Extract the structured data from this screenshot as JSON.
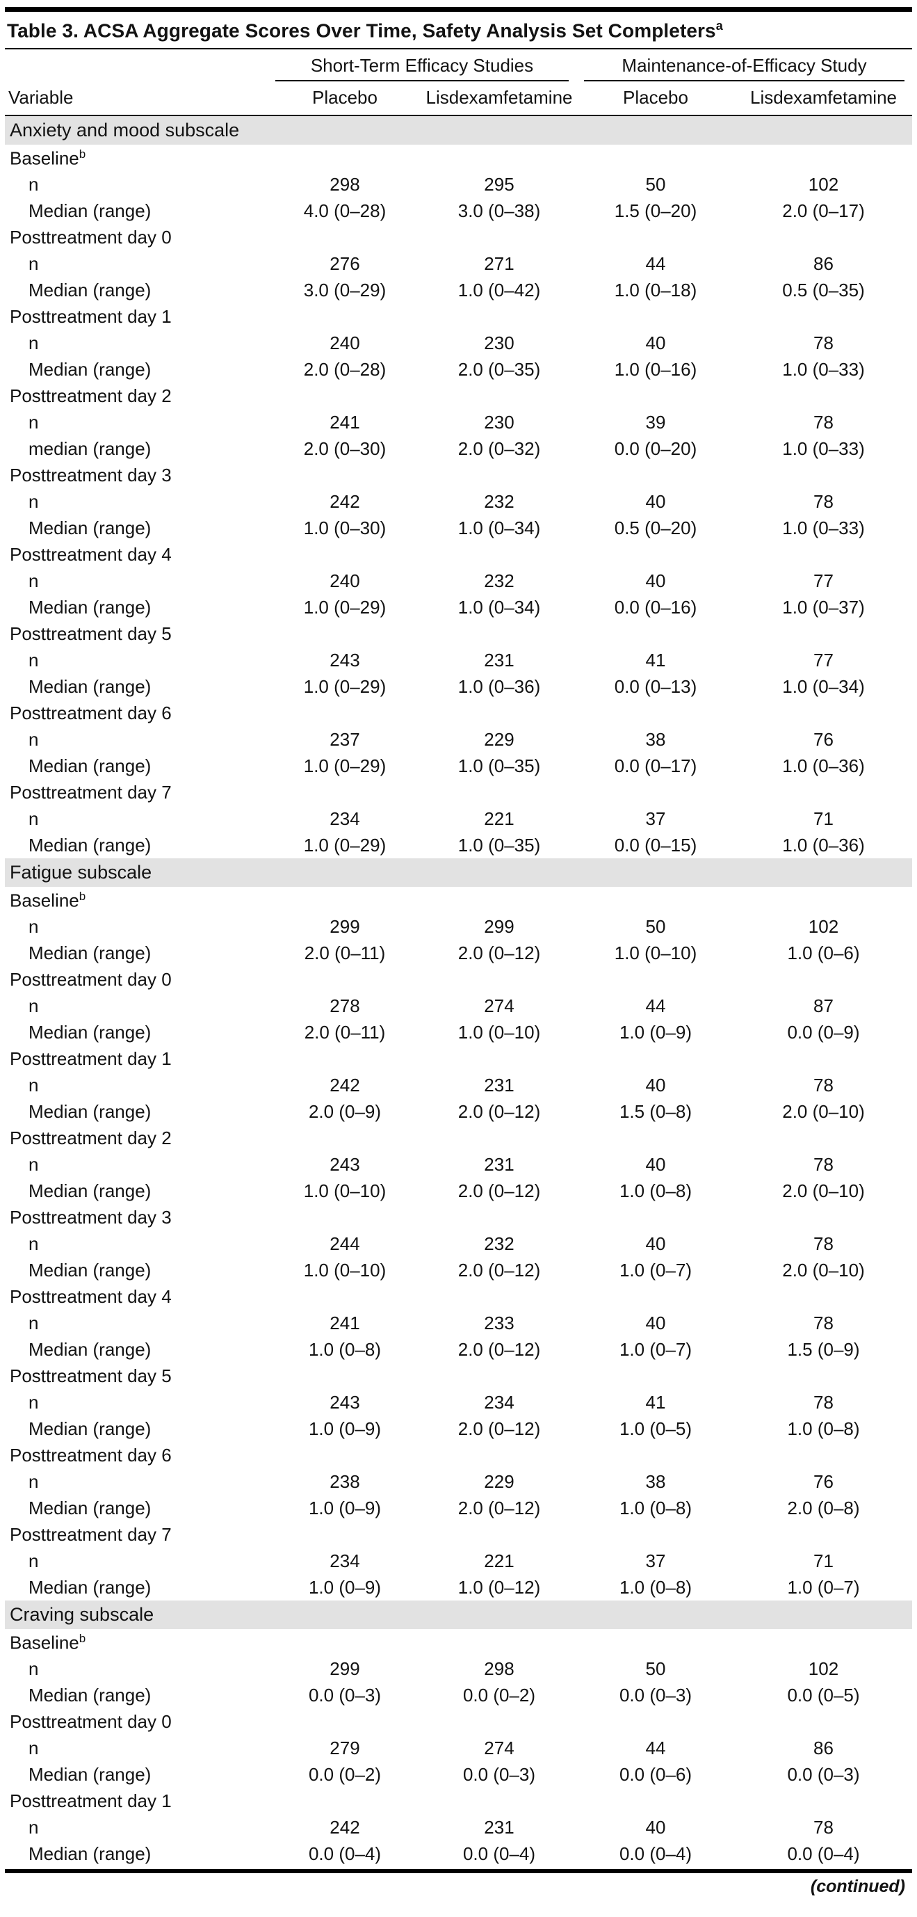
{
  "table": {
    "title": "Table 3. ACSA Aggregate Scores Over Time, Safety Analysis Set Completers",
    "title_superscript": "a",
    "column_groups": [
      {
        "label": "Short-Term Efficacy Studies",
        "span": 2
      },
      {
        "label": "Maintenance-of-Efficacy Study",
        "span": 2
      }
    ],
    "columns": [
      "Variable",
      "Placebo",
      "Lisdexamfetamine",
      "Placebo",
      "Lisdexamfetamine"
    ],
    "sections": [
      {
        "header": "Anxiety and mood subscale",
        "groups": [
          {
            "label": "Baseline",
            "superscript": "b",
            "rows": [
              {
                "label": "n",
                "values": [
                  "298",
                  "295",
                  "50",
                  "102"
                ]
              },
              {
                "label": "Median (range)",
                "values": [
                  "4.0 (0–28)",
                  "3.0 (0–38)",
                  "1.5 (0–20)",
                  "2.0 (0–17)"
                ]
              }
            ]
          },
          {
            "label": "Posttreatment day 0",
            "rows": [
              {
                "label": "n",
                "values": [
                  "276",
                  "271",
                  "44",
                  "86"
                ]
              },
              {
                "label": "Median (range)",
                "values": [
                  "3.0 (0–29)",
                  "1.0 (0–42)",
                  "1.0 (0–18)",
                  "0.5 (0–35)"
                ]
              }
            ]
          },
          {
            "label": "Posttreatment day 1",
            "rows": [
              {
                "label": "n",
                "values": [
                  "240",
                  "230",
                  "40",
                  "78"
                ]
              },
              {
                "label": "Median (range)",
                "values": [
                  "2.0 (0–28)",
                  "2.0 (0–35)",
                  "1.0 (0–16)",
                  "1.0 (0–33)"
                ]
              }
            ]
          },
          {
            "label": "Posttreatment day 2",
            "rows": [
              {
                "label": "n",
                "values": [
                  "241",
                  "230",
                  "39",
                  "78"
                ]
              },
              {
                "label": "median (range)",
                "values": [
                  "2.0 (0–30)",
                  "2.0 (0–32)",
                  "0.0 (0–20)",
                  "1.0 (0–33)"
                ]
              }
            ]
          },
          {
            "label": "Posttreatment day 3",
            "rows": [
              {
                "label": "n",
                "values": [
                  "242",
                  "232",
                  "40",
                  "78"
                ]
              },
              {
                "label": "Median (range)",
                "values": [
                  "1.0 (0–30)",
                  "1.0 (0–34)",
                  "0.5 (0–20)",
                  "1.0 (0–33)"
                ]
              }
            ]
          },
          {
            "label": "Posttreatment day 4",
            "rows": [
              {
                "label": "n",
                "values": [
                  "240",
                  "232",
                  "40",
                  "77"
                ]
              },
              {
                "label": "Median (range)",
                "values": [
                  "1.0 (0–29)",
                  "1.0 (0–34)",
                  "0.0 (0–16)",
                  "1.0 (0–37)"
                ]
              }
            ]
          },
          {
            "label": "Posttreatment day 5",
            "rows": [
              {
                "label": "n",
                "values": [
                  "243",
                  "231",
                  "41",
                  "77"
                ]
              },
              {
                "label": "Median (range)",
                "values": [
                  "1.0 (0–29)",
                  "1.0 (0–36)",
                  "0.0 (0–13)",
                  "1.0 (0–34)"
                ]
              }
            ]
          },
          {
            "label": "Posttreatment day 6",
            "rows": [
              {
                "label": "n",
                "values": [
                  "237",
                  "229",
                  "38",
                  "76"
                ]
              },
              {
                "label": "Median (range)",
                "values": [
                  "1.0 (0–29)",
                  "1.0 (0–35)",
                  "0.0 (0–17)",
                  "1.0 (0–36)"
                ]
              }
            ]
          },
          {
            "label": "Posttreatment day 7",
            "rows": [
              {
                "label": "n",
                "values": [
                  "234",
                  "221",
                  "37",
                  "71"
                ]
              },
              {
                "label": "Median (range)",
                "values": [
                  "1.0 (0–29)",
                  "1.0 (0–35)",
                  "0.0 (0–15)",
                  "1.0 (0–36)"
                ]
              }
            ]
          }
        ]
      },
      {
        "header": "Fatigue subscale",
        "groups": [
          {
            "label": "Baseline",
            "superscript": "b",
            "rows": [
              {
                "label": "n",
                "values": [
                  "299",
                  "299",
                  "50",
                  "102"
                ]
              },
              {
                "label": "Median (range)",
                "values": [
                  "2.0 (0–11)",
                  "2.0 (0–12)",
                  "1.0 (0–10)",
                  "1.0 (0–6)"
                ]
              }
            ]
          },
          {
            "label": "Posttreatment day 0",
            "rows": [
              {
                "label": "n",
                "values": [
                  "278",
                  "274",
                  "44",
                  "87"
                ]
              },
              {
                "label": "Median (range)",
                "values": [
                  "2.0 (0–11)",
                  "1.0 (0–10)",
                  "1.0 (0–9)",
                  "0.0 (0–9)"
                ]
              }
            ]
          },
          {
            "label": "Posttreatment day 1",
            "rows": [
              {
                "label": "n",
                "values": [
                  "242",
                  "231",
                  "40",
                  "78"
                ]
              },
              {
                "label": "Median (range)",
                "values": [
                  "2.0 (0–9)",
                  "2.0 (0–12)",
                  "1.5 (0–8)",
                  "2.0 (0–10)"
                ]
              }
            ]
          },
          {
            "label": "Posttreatment day 2",
            "rows": [
              {
                "label": "n",
                "values": [
                  "243",
                  "231",
                  "40",
                  "78"
                ]
              },
              {
                "label": "Median (range)",
                "values": [
                  "1.0 (0–10)",
                  "2.0 (0–12)",
                  "1.0 (0–8)",
                  "2.0 (0–10)"
                ]
              }
            ]
          },
          {
            "label": "Posttreatment day 3",
            "rows": [
              {
                "label": "n",
                "values": [
                  "244",
                  "232",
                  "40",
                  "78"
                ]
              },
              {
                "label": "Median (range)",
                "values": [
                  "1.0 (0–10)",
                  "2.0 (0–12)",
                  "1.0 (0–7)",
                  "2.0 (0–10)"
                ]
              }
            ]
          },
          {
            "label": "Posttreatment day 4",
            "rows": [
              {
                "label": "n",
                "values": [
                  "241",
                  "233",
                  "40",
                  "78"
                ]
              },
              {
                "label": "Median (range)",
                "values": [
                  "1.0 (0–8)",
                  "2.0 (0–12)",
                  "1.0 (0–7)",
                  "1.5 (0–9)"
                ]
              }
            ]
          },
          {
            "label": "Posttreatment day 5",
            "rows": [
              {
                "label": "n",
                "values": [
                  "243",
                  "234",
                  "41",
                  "78"
                ]
              },
              {
                "label": "Median (range)",
                "values": [
                  "1.0 (0–9)",
                  "2.0 (0–12)",
                  "1.0 (0–5)",
                  "1.0 (0–8)"
                ]
              }
            ]
          },
          {
            "label": "Posttreatment day 6",
            "rows": [
              {
                "label": "n",
                "values": [
                  "238",
                  "229",
                  "38",
                  "76"
                ]
              },
              {
                "label": "Median (range)",
                "values": [
                  "1.0 (0–9)",
                  "2.0 (0–12)",
                  "1.0 (0–8)",
                  "2.0 (0–8)"
                ]
              }
            ]
          },
          {
            "label": "Posttreatment day 7",
            "rows": [
              {
                "label": "n",
                "values": [
                  "234",
                  "221",
                  "37",
                  "71"
                ]
              },
              {
                "label": "Median (range)",
                "values": [
                  "1.0 (0–9)",
                  "1.0 (0–12)",
                  "1.0 (0–8)",
                  "1.0 (0–7)"
                ]
              }
            ]
          }
        ]
      },
      {
        "header": "Craving subscale",
        "groups": [
          {
            "label": "Baseline",
            "superscript": "b",
            "rows": [
              {
                "label": "n",
                "values": [
                  "299",
                  "298",
                  "50",
                  "102"
                ]
              },
              {
                "label": "Median (range)",
                "values": [
                  "0.0 (0–3)",
                  "0.0 (0–2)",
                  "0.0 (0–3)",
                  "0.0 (0–5)"
                ]
              }
            ]
          },
          {
            "label": "Posttreatment day 0",
            "rows": [
              {
                "label": "n",
                "values": [
                  "279",
                  "274",
                  "44",
                  "86"
                ]
              },
              {
                "label": "Median (range)",
                "values": [
                  "0.0 (0–2)",
                  "0.0 (0–3)",
                  "0.0 (0–6)",
                  "0.0 (0–3)"
                ]
              }
            ]
          },
          {
            "label": "Posttreatment day 1",
            "rows": [
              {
                "label": "n",
                "values": [
                  "242",
                  "231",
                  "40",
                  "78"
                ]
              },
              {
                "label": "Median (range)",
                "values": [
                  "0.0 (0–4)",
                  "0.0 (0–4)",
                  "0.0 (0–4)",
                  "0.0 (0–4)"
                ]
              }
            ]
          }
        ]
      }
    ],
    "continued_note": "(continued)"
  }
}
